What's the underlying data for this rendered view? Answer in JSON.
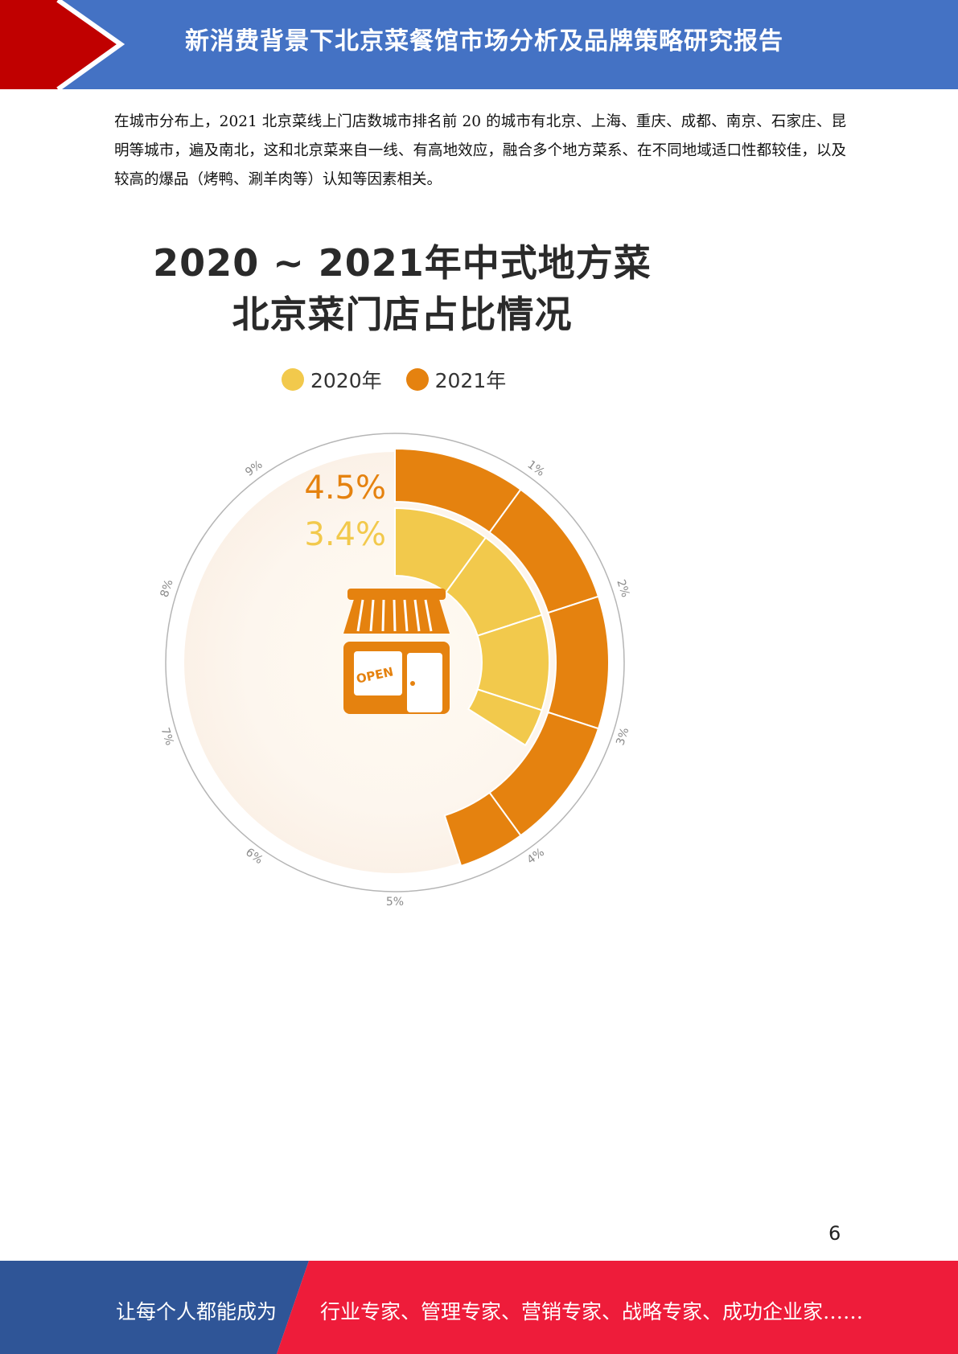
{
  "header": {
    "title": "新消费背景下北京菜餐馆市场分析及品牌策略研究报告",
    "colors": {
      "band": "#4472c4",
      "accent": "#c00000"
    }
  },
  "body": {
    "paragraph": "在城市分布上，2021 北京菜线上门店数城市排名前 20 的城市有北京、上海、重庆、成都、南京、石家庄、昆明等城市，遍及南北，这和北京菜来自一线、有高地效应，融合多个地方菜系、在不同地域适口性都较佳，以及较高的爆品（烤鸭、涮羊肉等）认知等因素相关。"
  },
  "chart_data": {
    "type": "radial-bar",
    "title": [
      "2020 ~ 2021年中式地方菜",
      "北京菜门店占比情况"
    ],
    "series": [
      {
        "name": "2020年",
        "value": 3.4,
        "label": "3.4%",
        "color": "#f2c94c"
      },
      {
        "name": "2021年",
        "value": 4.5,
        "label": "4.5%",
        "color": "#e5820f"
      }
    ],
    "scale_ticks": [
      "1%",
      "2%",
      "3%",
      "4%",
      "5%",
      "6%",
      "7%",
      "8%",
      "9%"
    ],
    "scale_max": 10,
    "icon": "storefront-icon",
    "icon_text": "OPEN",
    "icon_color": "#e5820f"
  },
  "page_number": "6",
  "footer": {
    "left": "让每个人都能成为",
    "right": "行业专家、管理专家、营销专家、战略专家、成功企业家……",
    "colors": {
      "left": "#2f5597",
      "right": "#ee1c3a"
    }
  }
}
